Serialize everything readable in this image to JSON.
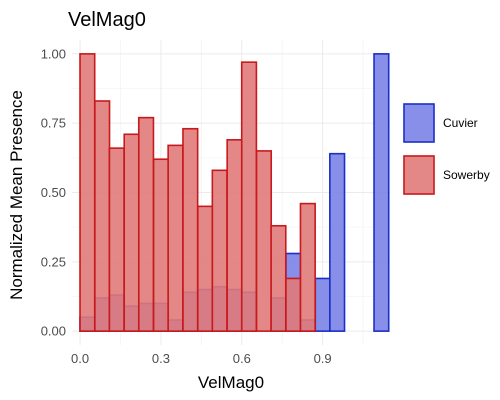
{
  "chart_data": {
    "type": "bar",
    "title": "VelMag0",
    "xlabel": "VelMag0",
    "ylabel": "Normalized Mean Presence",
    "xlim": [
      -0.03,
      1.15
    ],
    "ylim": [
      -0.05,
      1.05
    ],
    "x_ticks": [
      0.0,
      0.3,
      0.6,
      0.9
    ],
    "x_tick_labels": [
      "0.0",
      "0.3",
      "0.6",
      "0.9"
    ],
    "y_ticks": [
      0.0,
      0.25,
      0.5,
      0.75,
      1.0
    ],
    "y_tick_labels": [
      "0.00",
      "0.25",
      "0.50",
      "0.75",
      "1.00"
    ],
    "bin_width": 0.0545,
    "grid": true,
    "legend_position": "right",
    "series": [
      {
        "name": "Cuvier",
        "fill": "#7b83e6",
        "stroke": "#1c2fc6",
        "x": [
          0.027,
          0.082,
          0.136,
          0.191,
          0.245,
          0.3,
          0.354,
          0.409,
          0.464,
          0.518,
          0.573,
          0.627,
          0.682,
          0.736,
          0.791,
          0.845,
          0.9,
          0.954,
          1.009,
          1.118
        ],
        "values": [
          0.05,
          0.12,
          0.13,
          0.09,
          0.1,
          0.1,
          0.04,
          0.14,
          0.15,
          0.16,
          0.15,
          0.14,
          0.0,
          0.12,
          0.28,
          0.04,
          0.19,
          0.64,
          0.0,
          1.0
        ]
      },
      {
        "name": "Sowerby",
        "fill": "#e07a7a",
        "stroke": "#c8191c",
        "x": [
          0.027,
          0.082,
          0.136,
          0.191,
          0.245,
          0.3,
          0.354,
          0.409,
          0.464,
          0.518,
          0.573,
          0.627,
          0.682,
          0.736,
          0.791,
          0.845
        ],
        "values": [
          1.0,
          0.83,
          0.66,
          0.71,
          0.77,
          0.62,
          0.67,
          0.73,
          0.45,
          0.58,
          0.69,
          0.97,
          0.65,
          0.38,
          0.19,
          0.46
        ]
      }
    ]
  }
}
